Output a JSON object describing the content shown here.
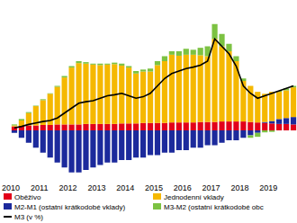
{
  "chart_data": {
    "type": "bar",
    "stacked": true,
    "tick_labels": "x",
    "ylim": [
      -10,
      26
    ],
    "categories": [
      "2010",
      null,
      null,
      null,
      "2011",
      null,
      null,
      null,
      "2012",
      null,
      null,
      null,
      "2013",
      null,
      null,
      null,
      "2014",
      null,
      null,
      null,
      "2015",
      null,
      null,
      null,
      "2016",
      null,
      null,
      null,
      "2017",
      null,
      null,
      null,
      "2018",
      null,
      null,
      null,
      "2019",
      null,
      null,
      null
    ],
    "series": [
      {
        "name": "Oběživo",
        "color": "#e2001a",
        "type": "bar",
        "values": [
          0.8,
          0.9,
          1.0,
          1.0,
          1.1,
          1.1,
          1.2,
          1.2,
          1.2,
          1.2,
          1.3,
          1.3,
          1.3,
          1.3,
          1.3,
          1.4,
          1.4,
          1.4,
          1.5,
          1.5,
          1.5,
          1.5,
          1.6,
          1.6,
          1.6,
          1.6,
          1.7,
          1.7,
          1.7,
          1.8,
          1.8,
          1.8,
          1.8,
          1.7,
          1.6,
          1.5,
          1.4,
          1.3,
          1.3,
          1.2
        ]
      },
      {
        "name": "M2-M1 (ostatní krátkodobé vklady)",
        "color": "#1c2a9c",
        "type": "bar",
        "values": [
          -0.5,
          -1.5,
          -2.5,
          -3.5,
          -4.5,
          -5.5,
          -6.5,
          -7.5,
          -8.5,
          -8.5,
          -8,
          -7.5,
          -7,
          -6.5,
          -6.5,
          -6,
          -6,
          -5.5,
          -5.5,
          -5,
          -5,
          -4.5,
          -4.5,
          -4,
          -4,
          -3.5,
          -3.5,
          -3,
          -3,
          -2.5,
          -2,
          -2,
          -1.5,
          -1,
          -0.5,
          0.2,
          0.5,
          1,
          1.2,
          1.5
        ]
      },
      {
        "name": "Jednodenní vklady",
        "color": "#f5b800",
        "type": "bar",
        "values": [
          0.2,
          1.1,
          2.5,
          3.9,
          5.0,
          6.3,
          7.6,
          9.5,
          11.5,
          12.4,
          12.2,
          12.0,
          11.9,
          12.0,
          12.1,
          11.7,
          11.3,
          10.1,
          10.4,
          10.4,
          11.7,
          12.5,
          13.7,
          13.5,
          13.7,
          13.7,
          13.5,
          13.3,
          16.8,
          15.2,
          14.2,
          12.2,
          8.2,
          7.3,
          6.2,
          5.7,
          5.9,
          5.5,
          5.6,
          6.0
        ]
      },
      {
        "name": "M3-M2 (ostatní krátkodobé obc",
        "color": "#7cc242",
        "type": "bar",
        "values": [
          0.2,
          0.3,
          0.2,
          0.1,
          0.2,
          0.1,
          0.2,
          0.3,
          0.3,
          0.4,
          0.3,
          0.2,
          0.3,
          0.2,
          0.3,
          0.4,
          0.3,
          0.5,
          0.4,
          0.6,
          0.8,
          1.0,
          0.7,
          0.9,
          1.2,
          1.0,
          1.5,
          2.0,
          3.0,
          2.5,
          1.5,
          1.0,
          0.5,
          -0.5,
          -0.8,
          -0.4,
          -0.3,
          0.2,
          0.4,
          0.3
        ]
      },
      {
        "name": "M3 (v %)",
        "color": "#000000",
        "type": "line",
        "values": [
          0.5,
          0.8,
          1.2,
          1.5,
          1.8,
          2.0,
          2.5,
          3.5,
          4.5,
          5.5,
          5.8,
          6.0,
          6.5,
          7.0,
          7.2,
          7.5,
          7.0,
          6.5,
          6.8,
          7.5,
          9.0,
          10.5,
          11.5,
          12.0,
          12.5,
          12.8,
          13.2,
          14.0,
          18.5,
          17.0,
          15.5,
          13.0,
          9.0,
          7.5,
          6.5,
          7.0,
          7.5,
          8.0,
          8.5,
          9.0
        ]
      }
    ]
  }
}
